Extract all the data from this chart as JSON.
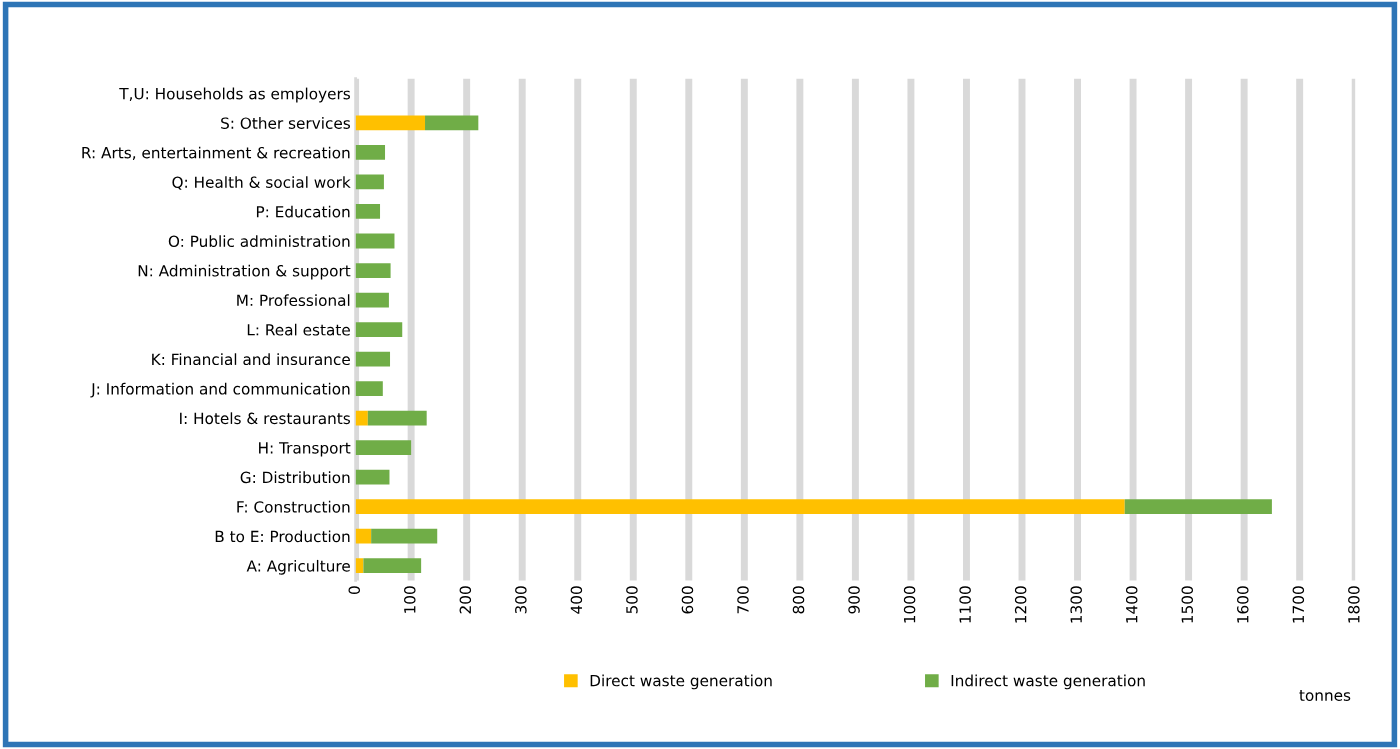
{
  "chart_data": {
    "type": "bar",
    "orientation": "horizontal",
    "stacked": true,
    "categories": [
      "T,U: Households as employers",
      "S: Other services",
      "R: Arts, entertainment & recreation",
      "Q: Health & social work",
      "P: Education",
      "O: Public administration",
      "N: Administration & support",
      "M: Professional",
      "L: Real estate",
      "K: Financial and insurance",
      "J: Information and communication",
      "I: Hotels & restaurants",
      "H: Transport",
      "G: Distribution",
      "F: Construction",
      "B to E: Production",
      "A: Agriculture"
    ],
    "series": [
      {
        "name": "Direct waste generation",
        "color": "#ffc000",
        "values": [
          null,
          125,
          null,
          null,
          null,
          null,
          null,
          null,
          null,
          null,
          null,
          22,
          null,
          null,
          1385,
          28,
          14
        ]
      },
      {
        "name": "Indirect waste generation",
        "color": "#70ad47",
        "values": [
          null,
          96,
          53,
          51,
          44,
          70,
          63,
          60,
          84,
          62,
          49,
          106,
          100,
          61,
          265,
          119,
          104
        ]
      }
    ],
    "xlim": [
      0,
      1800
    ],
    "xticks": [
      0,
      100,
      200,
      300,
      400,
      500,
      600,
      700,
      800,
      900,
      1000,
      1100,
      1200,
      1300,
      1400,
      1500,
      1600,
      1700,
      1800
    ],
    "annotations": [
      "tonnes"
    ],
    "grid": "x",
    "legend": "bottom"
  }
}
